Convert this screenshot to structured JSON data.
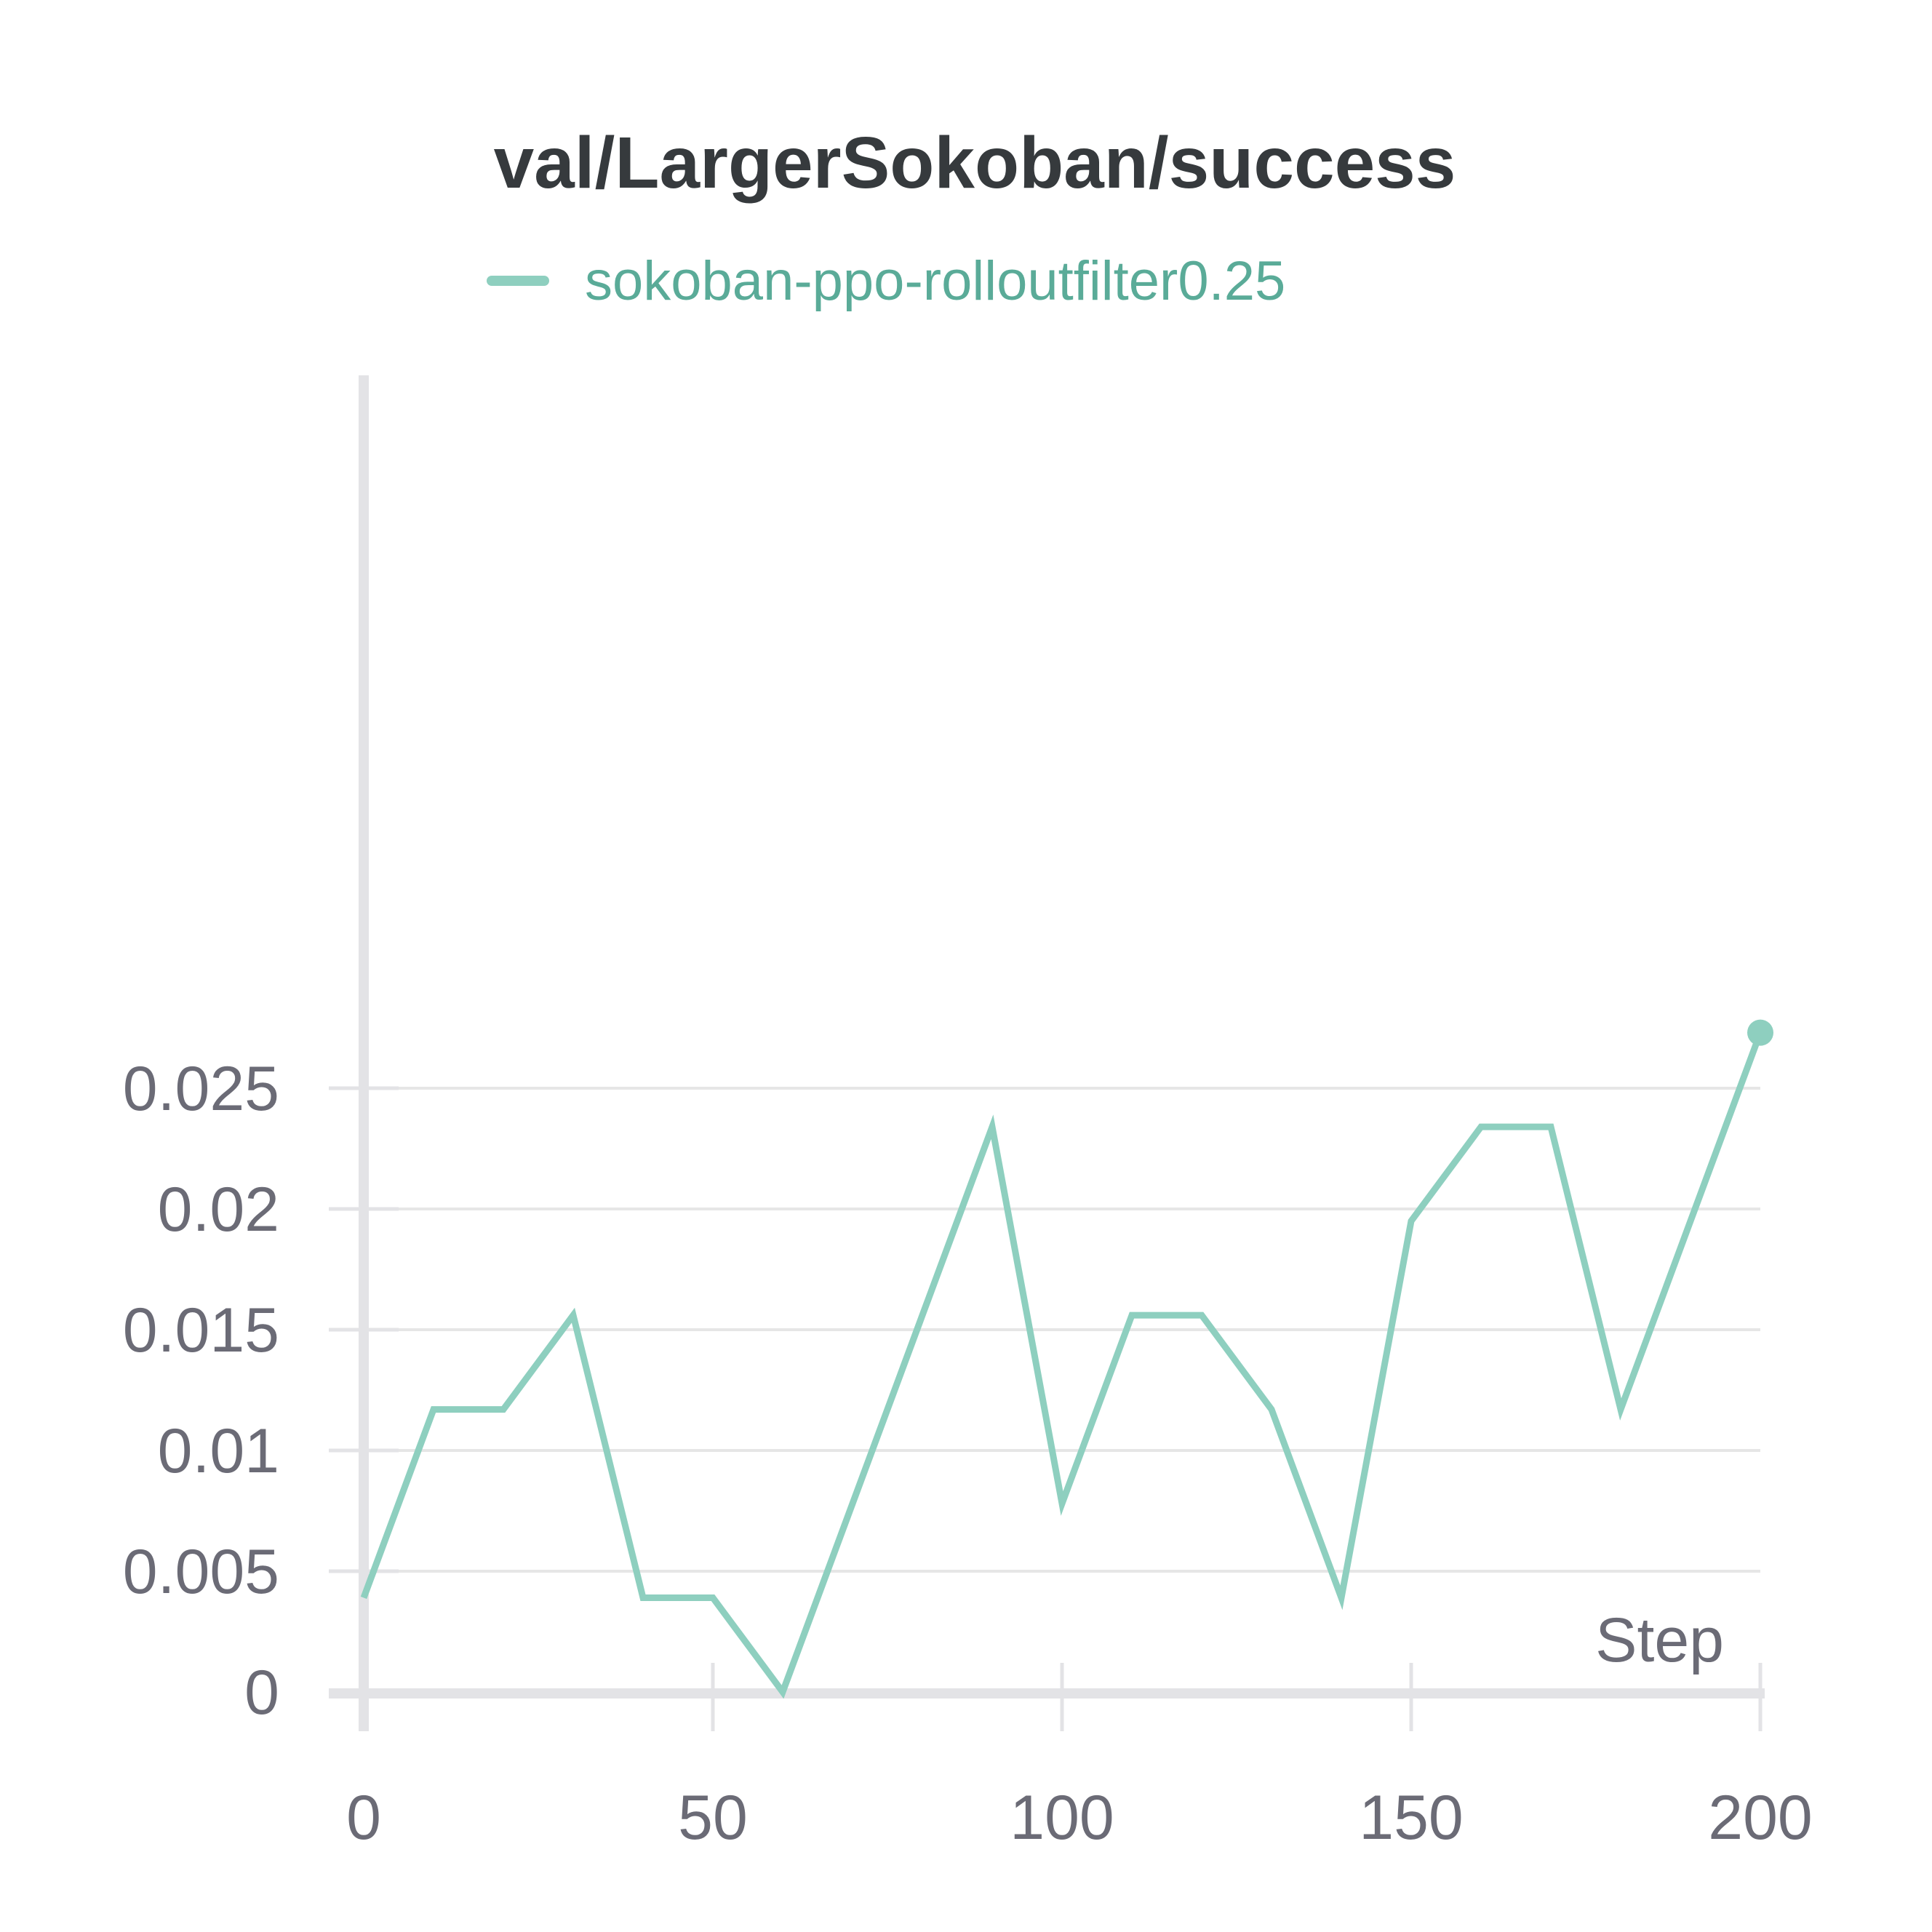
{
  "chart_data": {
    "type": "line",
    "title": "val/LargerSokoban/success",
    "xlabel": "Step",
    "ylabel": "",
    "xlim": [
      0,
      200
    ],
    "ylim": [
      0,
      0.027
    ],
    "x_ticks": [
      0,
      50,
      100,
      150,
      200
    ],
    "x_tick_labels": [
      "0",
      "50",
      "100",
      "150",
      "200"
    ],
    "y_ticks": [
      0,
      0.005,
      0.01,
      0.015,
      0.02,
      0.025
    ],
    "y_tick_labels": [
      "0",
      "0.005",
      "0.01",
      "0.015",
      "0.02",
      "0.025"
    ],
    "grid": true,
    "legend_position": "top",
    "series": [
      {
        "name": "sokoban-ppo-rolloutfilter0.25",
        "color": "#8ecfbf",
        "legend_text_color": "#5aab98",
        "x": [
          0,
          10,
          20,
          30,
          40,
          50,
          60,
          70,
          80,
          90,
          100,
          110,
          120,
          130,
          140,
          150,
          160,
          170,
          180,
          190,
          200
        ],
        "values": [
          0.0039,
          0.0117,
          0.0117,
          0.0156,
          0.0039,
          0.0039,
          0.0,
          0.0078,
          0.0156,
          0.0234,
          0.0078,
          0.0156,
          0.0156,
          0.0117,
          0.0039,
          0.0195,
          0.0234,
          0.0234,
          0.0117,
          0.0195,
          0.0273
        ]
      }
    ]
  }
}
